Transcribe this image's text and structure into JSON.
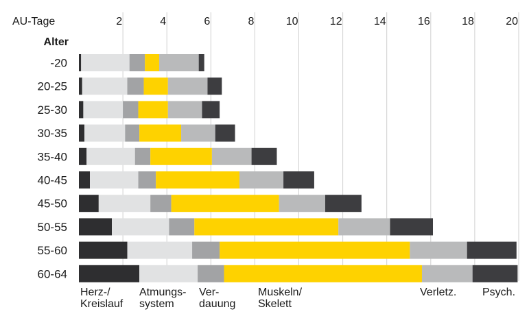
{
  "chart_data": {
    "type": "bar",
    "stacked": true,
    "orientation": "horizontal",
    "x_axis_label": "AU-Tage",
    "y_axis_label": "Alter",
    "xlim": [
      0,
      20
    ],
    "x_ticks": [
      2,
      4,
      6,
      8,
      10,
      12,
      14,
      16,
      18,
      20
    ],
    "grid": "vertical",
    "categories": [
      "-20",
      "20-25",
      "25-30",
      "30-35",
      "35-40",
      "40-45",
      "45-50",
      "50-55",
      "55-60",
      "60-64"
    ],
    "series": [
      {
        "name": "Herz-/ Kreislauf",
        "color": "#2e2e30",
        "values": [
          0.1,
          0.15,
          0.2,
          0.25,
          0.35,
          0.5,
          0.9,
          1.5,
          2.2,
          2.75
        ]
      },
      {
        "name": "Atmungs- system",
        "color": "#e1e2e3",
        "values": [
          2.2,
          2.05,
          1.8,
          1.85,
          2.2,
          2.2,
          2.35,
          2.6,
          2.95,
          2.65
        ]
      },
      {
        "name": "",
        "color": "#a2a3a5",
        "values": [
          0.7,
          0.75,
          0.7,
          0.65,
          0.7,
          0.8,
          0.95,
          1.15,
          1.25,
          1.2
        ]
      },
      {
        "name": "Ver- dauung",
        "color": "#fed200",
        "values": [
          0.65,
          1.1,
          1.35,
          1.9,
          2.8,
          3.8,
          4.9,
          6.55,
          8.65,
          9.0
        ]
      },
      {
        "name": "Muskeln/ Skelett",
        "color": "#b9babb",
        "values": [
          1.8,
          1.8,
          1.55,
          1.55,
          1.8,
          2.0,
          2.1,
          2.35,
          2.6,
          2.3
        ]
      },
      {
        "name": "Verletz.",
        "color": "#3d3d40",
        "values": [
          0.25,
          0.65,
          0.8,
          0.9,
          1.15,
          1.4,
          1.65,
          1.95,
          2.25,
          2.05
        ]
      }
    ],
    "legend_labels": [
      {
        "lines": [
          "Herz-/",
          "Kreislauf"
        ]
      },
      {
        "lines": [
          "Atmungs-",
          "system"
        ]
      },
      {
        "lines": [
          "Ver-",
          "dauung"
        ]
      },
      {
        "lines": [
          "Muskeln/",
          "Skelett"
        ]
      },
      {
        "lines": [
          "Verletz."
        ]
      },
      {
        "lines": [
          "Psych."
        ]
      }
    ]
  }
}
